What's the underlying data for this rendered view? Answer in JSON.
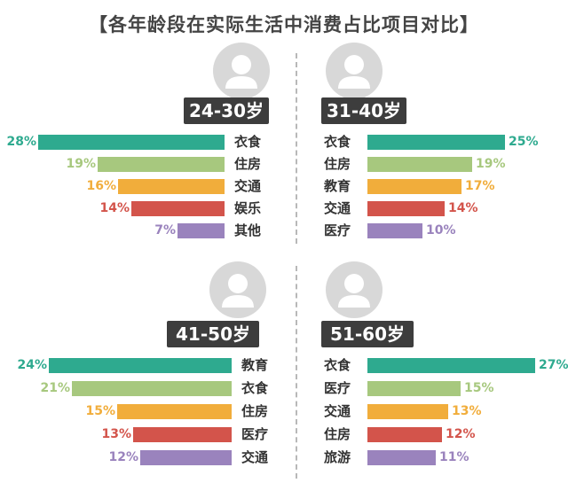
{
  "title": "【各年龄段在实际生活中消费占比项目对比】",
  "colors": [
    "#2eaa8f",
    "#a7c87e",
    "#f1ad3b",
    "#d3544b",
    "#9a83bd"
  ],
  "icons": {
    "avatar": "person-silhouette-icon"
  },
  "chart_data": [
    {
      "type": "bar",
      "group": "24-30岁",
      "categories": [
        "衣食",
        "住房",
        "交通",
        "娱乐",
        "其他"
      ],
      "values": [
        28,
        19,
        16,
        14,
        7
      ],
      "labels": [
        "28%",
        "19%",
        "16%",
        "14%",
        "7%"
      ],
      "xlim": [
        0,
        28
      ]
    },
    {
      "type": "bar",
      "group": "31-40岁",
      "categories": [
        "衣食",
        "住房",
        "教育",
        "交通",
        "医疗"
      ],
      "values": [
        25,
        19,
        17,
        14,
        10
      ],
      "labels": [
        "25%",
        "19%",
        "17%",
        "14%",
        "10%"
      ],
      "xlim": [
        0,
        28
      ]
    },
    {
      "type": "bar",
      "group": "41-50岁",
      "categories": [
        "教育",
        "衣食",
        "住房",
        "医疗",
        "交通"
      ],
      "values": [
        24,
        21,
        15,
        13,
        12
      ],
      "labels": [
        "24%",
        "21%",
        "15%",
        "13%",
        "12%"
      ],
      "xlim": [
        0,
        28
      ]
    },
    {
      "type": "bar",
      "group": "51-60岁",
      "categories": [
        "衣食",
        "医疗",
        "交通",
        "住房",
        "旅游"
      ],
      "values": [
        27,
        15,
        13,
        12,
        11
      ],
      "labels": [
        "27%",
        "15%",
        "13%",
        "12%",
        "11%"
      ],
      "xlim": [
        0,
        28
      ]
    }
  ]
}
